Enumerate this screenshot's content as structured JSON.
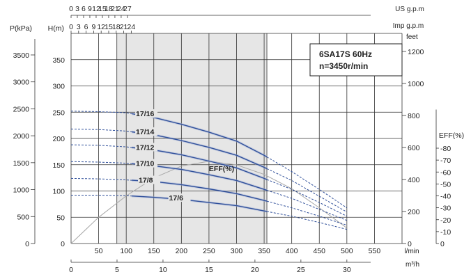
{
  "chart_data": {
    "type": "line",
    "title_lines": [
      "6SA17S  60Hz",
      "n=3450r/min"
    ],
    "axes": {
      "flow_lpm": {
        "unit": "l/min",
        "range": [
          0,
          600
        ],
        "ticks": [
          50,
          100,
          150,
          200,
          250,
          300,
          350,
          400,
          450,
          500,
          550
        ]
      },
      "flow_m3h": {
        "unit": "m³/h",
        "ticks": [
          0,
          5,
          10,
          15,
          20,
          25,
          30
        ]
      },
      "flow_usgpm": {
        "unit": "US g.p.m",
        "ticks": [
          0,
          3,
          6,
          9,
          12,
          15,
          18,
          21,
          24,
          27
        ]
      },
      "flow_impgpm": {
        "unit": "Imp g.p.m",
        "ticks": [
          0,
          3,
          6,
          9,
          12,
          15,
          18,
          21,
          24
        ]
      },
      "head_m": {
        "label": "H(m)",
        "range": [
          0,
          400
        ],
        "ticks": [
          0,
          50,
          100,
          150,
          200,
          250,
          300,
          350
        ]
      },
      "pressure_kpa": {
        "label": "P(kPa)",
        "ticks": [
          0,
          500,
          1000,
          1500,
          2000,
          2500,
          3000,
          3500
        ]
      },
      "head_feet": {
        "label": "feet",
        "ticks": [
          0,
          200,
          400,
          600,
          800,
          1000,
          1200
        ]
      },
      "eff_pct": {
        "label": "EFF(%)",
        "ticks": [
          0,
          10,
          20,
          30,
          40,
          50,
          60,
          70,
          80
        ]
      }
    },
    "recommended_range_lpm": [
      83,
      355
    ],
    "series": [
      {
        "name": "17/16",
        "label_at": 115,
        "x": [
          0,
          50,
          100,
          150,
          200,
          250,
          300,
          350,
          400,
          450,
          500
        ],
        "y": [
          252,
          251,
          249,
          240,
          227,
          212,
          195,
          168,
          137,
          103,
          68
        ]
      },
      {
        "name": "17/14",
        "label_at": 115,
        "x": [
          0,
          50,
          100,
          150,
          200,
          250,
          300,
          350,
          400,
          450,
          500
        ],
        "y": [
          218,
          217,
          214,
          207,
          196,
          183,
          168,
          145,
          120,
          90,
          60
        ]
      },
      {
        "name": "17/12",
        "label_at": 115,
        "x": [
          0,
          50,
          100,
          150,
          200,
          250,
          300,
          350,
          400,
          450,
          500
        ],
        "y": [
          188,
          187,
          184,
          178,
          169,
          157,
          144,
          124,
          103,
          78,
          52
        ]
      },
      {
        "name": "17/10",
        "label_at": 115,
        "x": [
          0,
          50,
          100,
          150,
          200,
          250,
          300,
          350,
          400,
          450,
          500
        ],
        "y": [
          156,
          155,
          153,
          148,
          141,
          131,
          120,
          103,
          86,
          65,
          44
        ]
      },
      {
        "name": "17/8",
        "label_at": 120,
        "x": [
          0,
          50,
          100,
          150,
          200,
          250,
          300,
          350,
          400,
          450,
          500
        ],
        "y": [
          124,
          123,
          121,
          118,
          112,
          104,
          95,
          82,
          68,
          52,
          35
        ]
      },
      {
        "name": "17/6",
        "label_at": 175,
        "x": [
          0,
          50,
          100,
          150,
          200,
          250,
          300,
          350,
          400,
          450,
          500
        ],
        "y": [
          92,
          92,
          91,
          88,
          84,
          78,
          72,
          62,
          52,
          40,
          27
        ]
      }
    ],
    "efficiency": {
      "name": "EFF(%)",
      "x": [
        0,
        50,
        100,
        150,
        200,
        250,
        300,
        350,
        400,
        450,
        500
      ],
      "y": [
        0,
        22,
        40,
        55,
        65,
        69,
        66,
        58,
        46,
        30,
        13
      ]
    },
    "dashed_regions": "curves are dashed left of the shaded range and beyond 355 l/min",
    "grid": true
  }
}
